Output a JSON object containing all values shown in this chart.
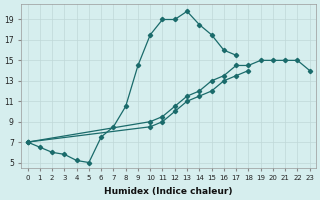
{
  "xlabel": "Humidex (Indice chaleur)",
  "ylabel": "",
  "xlim": [
    -0.5,
    23.5
  ],
  "ylim": [
    4.5,
    20.5
  ],
  "xticks": [
    0,
    1,
    2,
    3,
    4,
    5,
    6,
    7,
    8,
    9,
    10,
    11,
    12,
    13,
    14,
    15,
    16,
    17,
    18,
    19,
    20,
    21,
    22,
    23
  ],
  "yticks": [
    5,
    7,
    9,
    11,
    13,
    15,
    17,
    19
  ],
  "bg_color": "#d6eeee",
  "line_color": "#1a6b6b",
  "grid_color": "#c0d8d8",
  "curve1_x": [
    0,
    1,
    2,
    3,
    4,
    5,
    6,
    7,
    8,
    9,
    10,
    11,
    12,
    13,
    14,
    15,
    16,
    17
  ],
  "curve1_y": [
    7.0,
    6.5,
    6.0,
    5.8,
    5.2,
    5.0,
    7.5,
    8.5,
    10.5,
    14.5,
    17.5,
    19.0,
    19.0,
    19.8,
    18.5,
    17.5,
    16.0,
    15.5
  ],
  "curve2_x": [
    0,
    10,
    11,
    12,
    13,
    14,
    15,
    16,
    17,
    18,
    19,
    20,
    21,
    22,
    23
  ],
  "curve2_y": [
    7.0,
    9.0,
    9.5,
    10.5,
    11.5,
    12.0,
    13.0,
    13.5,
    14.5,
    14.5,
    15.0,
    15.0,
    15.0,
    15.0,
    14.0
  ],
  "curve3_x": [
    0,
    10,
    11,
    12,
    13,
    14,
    15,
    16,
    17,
    18
  ],
  "curve3_y": [
    7.0,
    8.5,
    9.0,
    10.0,
    11.0,
    11.5,
    12.0,
    13.0,
    13.5,
    14.0
  ]
}
